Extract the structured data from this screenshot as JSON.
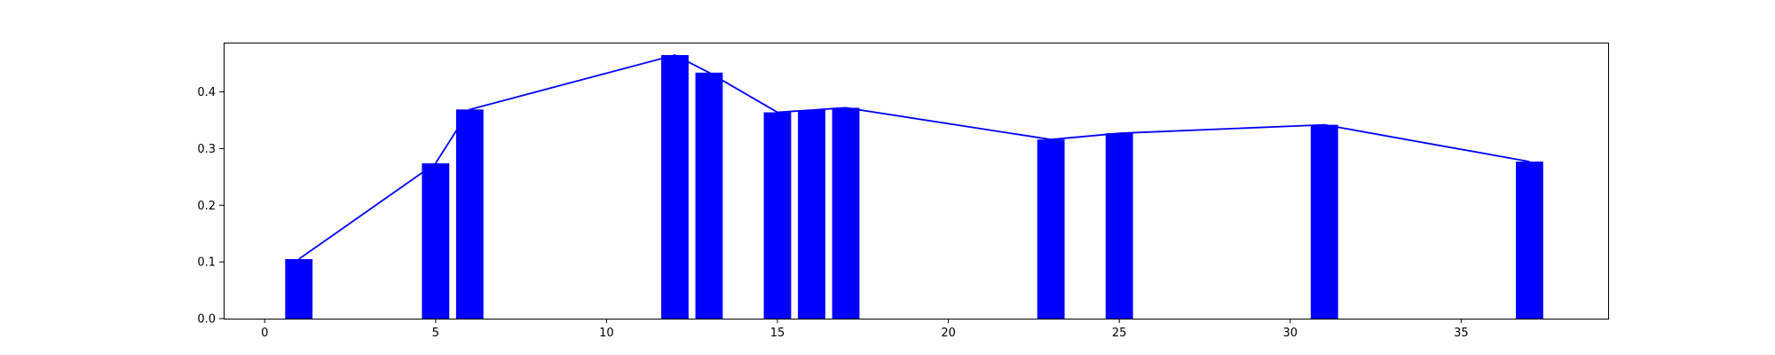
{
  "chart_data": {
    "type": "bar",
    "title": "",
    "xlabel": "",
    "ylabel": "",
    "xlim": [
      -1.2,
      39.3
    ],
    "ylim": [
      0,
      0.487
    ],
    "grid": false,
    "x_ticks": [
      0,
      5,
      10,
      15,
      20,
      25,
      30,
      35
    ],
    "x_tick_labels": [
      "0",
      "5",
      "10",
      "15",
      "20",
      "25",
      "30",
      "35"
    ],
    "y_ticks": [
      0.0,
      0.1,
      0.2,
      0.3,
      0.4
    ],
    "y_tick_labels": [
      "0.0",
      "0.1",
      "0.2",
      "0.3",
      "0.4"
    ],
    "bar_color": "#0000ff",
    "line_color": "#0000ff",
    "bar_width": 0.8,
    "x": [
      1,
      5,
      6,
      12,
      13,
      15,
      16,
      17,
      23,
      25,
      31,
      37
    ],
    "values": [
      0.105,
      0.274,
      0.369,
      0.465,
      0.434,
      0.364,
      0.368,
      0.372,
      0.316,
      0.327,
      0.342,
      0.277
    ],
    "series": [
      {
        "values": [
          0.105,
          0.274,
          0.369,
          0.465,
          0.434,
          0.364,
          0.368,
          0.372,
          0.316,
          0.327,
          0.342,
          0.277
        ]
      }
    ]
  }
}
